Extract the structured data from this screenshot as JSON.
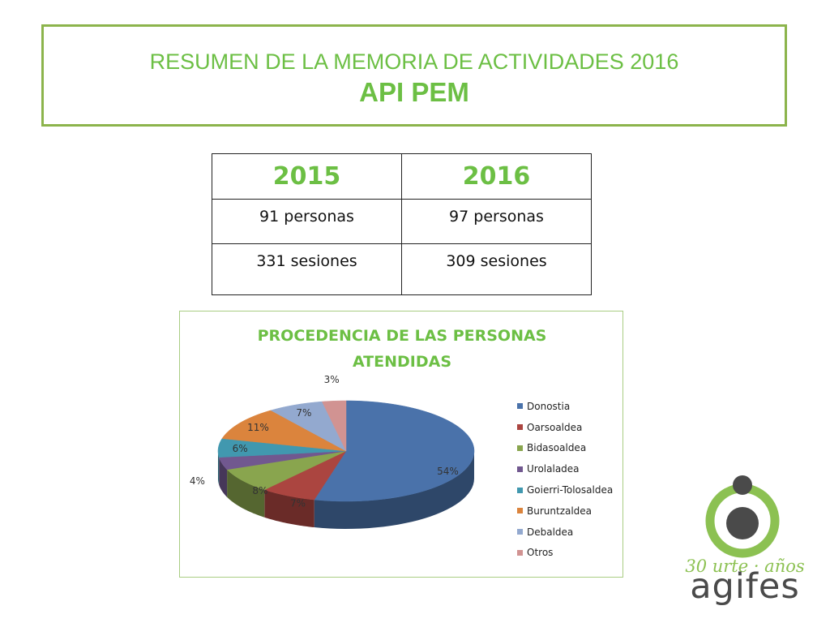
{
  "header": {
    "title_line1": "RESUMEN DE LA MEMORIA DE ACTIVIDADES 2016",
    "title_line2": "API PEM"
  },
  "stats_table": {
    "columns": [
      "2015",
      "2016"
    ],
    "rows": [
      [
        "91 personas",
        "97 personas"
      ],
      [
        "331 sesiones",
        "309 sesiones"
      ]
    ]
  },
  "chart_data": {
    "type": "pie",
    "title_lines": [
      "PROCEDENCIA DE LAS PERSONAS",
      "ATENDIDAS"
    ],
    "legend_position": "right",
    "slices": [
      {
        "label": "Donostia",
        "value": 54,
        "display": "54%",
        "color": "#4a72aa"
      },
      {
        "label": "Oarsoaldea",
        "value": 7,
        "display": "7%",
        "color": "#ab4540"
      },
      {
        "label": "Bidasoaldea",
        "value": 8,
        "display": "8%",
        "color": "#89a54e"
      },
      {
        "label": "Urolaladea",
        "value": 4,
        "display": "4%",
        "color": "#71588f"
      },
      {
        "label": "Goierri-Tolosaldea",
        "value": 6,
        "display": "6%",
        "color": "#4198af"
      },
      {
        "label": "Buruntzaldea",
        "value": 11,
        "display": "11%",
        "color": "#db843d"
      },
      {
        "label": "Debaldea",
        "value": 7,
        "display": "7%",
        "color": "#93a9cf"
      },
      {
        "label": "Otros",
        "value": 3,
        "display": "3%",
        "color": "#d19392"
      }
    ]
  },
  "logo": {
    "tagline": "30 urte · años",
    "wordmark": "agifes",
    "colors": {
      "green": "#8cc152",
      "gray": "#444444"
    }
  }
}
